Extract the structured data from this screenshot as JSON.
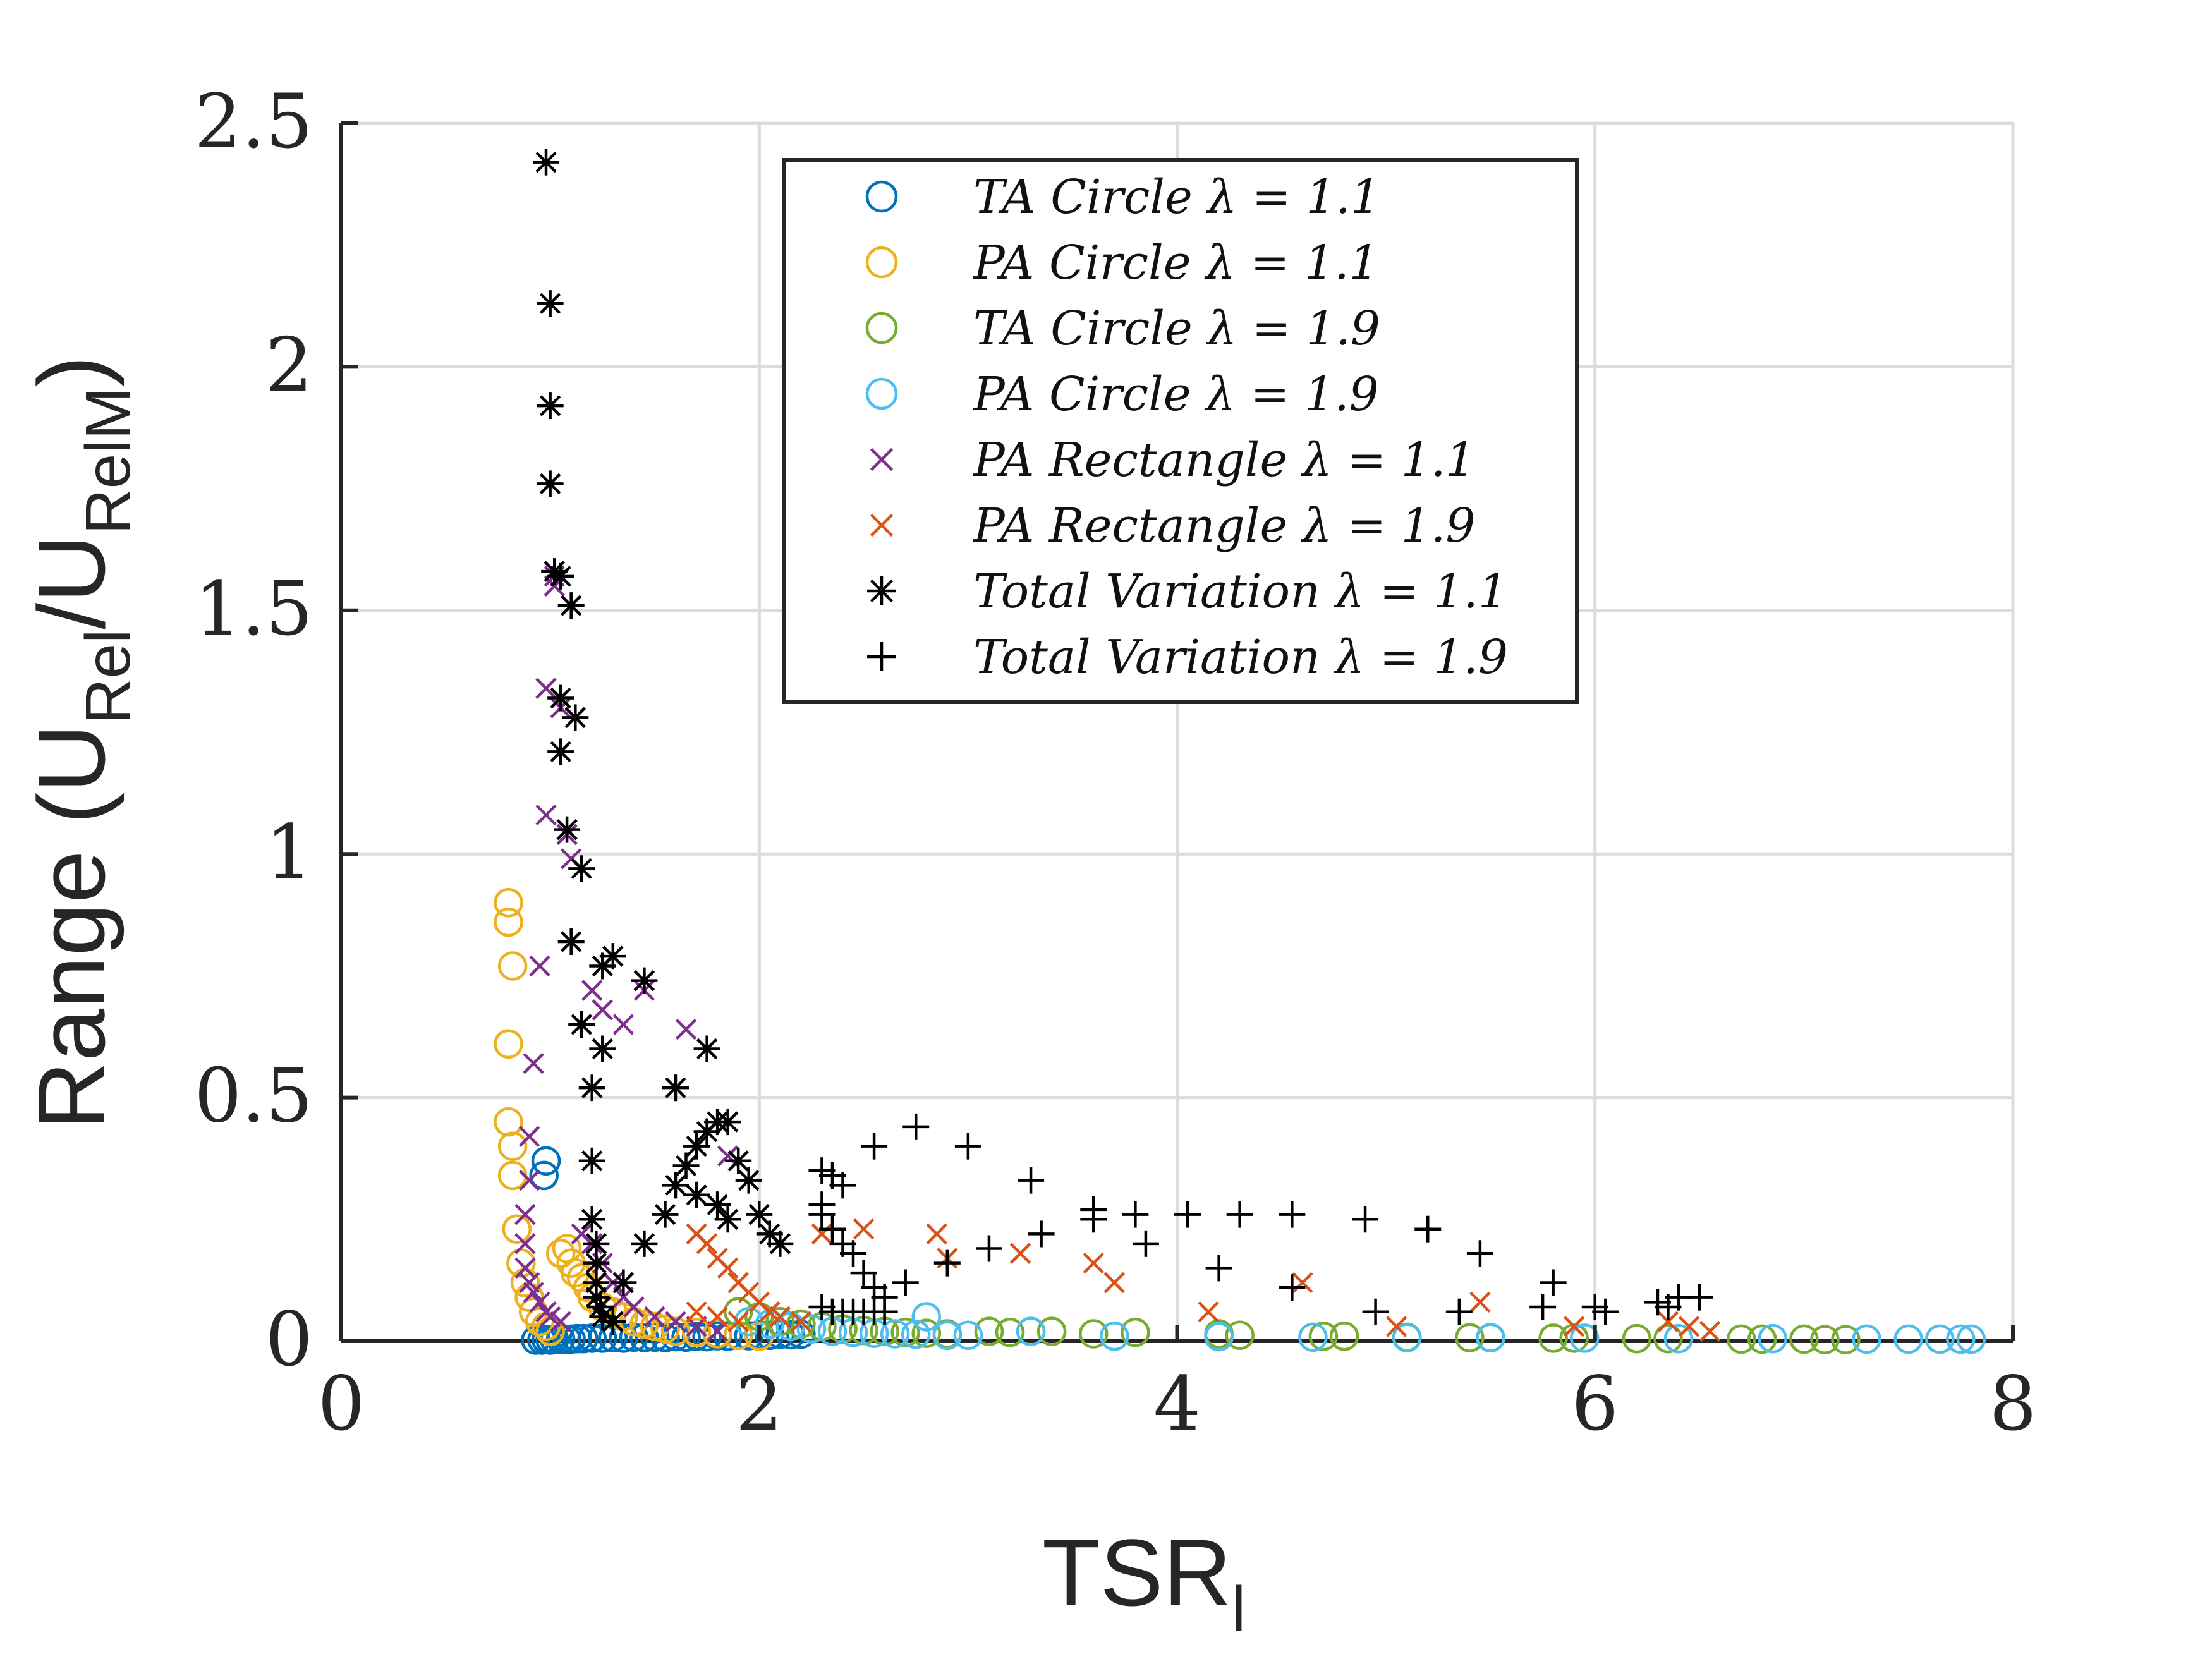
{
  "chart_data": {
    "type": "scatter",
    "title": "",
    "xlabel": "TSR",
    "xlabel_sub": "l",
    "ylabel_prefix": "Range (U",
    "ylabel_sub1": "Rel",
    "ylabel_mid": "/U",
    "ylabel_sub2": "RelM",
    "ylabel_suffix": ")",
    "xlim": [
      0,
      8
    ],
    "ylim": [
      0,
      2.5
    ],
    "x_ticks": [
      "0",
      "2",
      "4",
      "6",
      "8"
    ],
    "y_ticks": [
      "0",
      "0.5",
      "1",
      "1.5",
      "2",
      "2.5"
    ],
    "x_tick_values": [
      0,
      2,
      4,
      6,
      8
    ],
    "y_tick_values": [
      0,
      0.5,
      1,
      1.5,
      2,
      2.5
    ],
    "grid": true,
    "legend_position": "top-right",
    "series": [
      {
        "name": "TA Circle λ = 1.1",
        "marker": "circle",
        "color": "#0072BD",
        "points": [
          [
            0.93,
            0.002
          ],
          [
            0.96,
            0.002
          ],
          [
            0.98,
            0.003
          ],
          [
            1.0,
            0.002
          ],
          [
            1.02,
            0.003
          ],
          [
            1.05,
            0.004
          ],
          [
            1.08,
            0.003
          ],
          [
            1.1,
            0.004
          ],
          [
            1.13,
            0.005
          ],
          [
            1.16,
            0.005
          ],
          [
            1.2,
            0.006
          ],
          [
            1.25,
            0.006
          ],
          [
            1.3,
            0.007
          ],
          [
            1.35,
            0.006
          ],
          [
            1.4,
            0.008
          ],
          [
            1.45,
            0.007
          ],
          [
            1.5,
            0.008
          ],
          [
            1.55,
            0.007
          ],
          [
            1.6,
            0.009
          ],
          [
            1.65,
            0.008
          ],
          [
            1.7,
            0.01
          ],
          [
            1.75,
            0.009
          ],
          [
            1.8,
            0.011
          ],
          [
            1.85,
            0.01
          ],
          [
            1.9,
            0.012
          ],
          [
            1.95,
            0.011
          ],
          [
            2.0,
            0.013
          ],
          [
            2.05,
            0.012
          ],
          [
            2.1,
            0.014
          ],
          [
            2.15,
            0.013
          ],
          [
            2.2,
            0.014
          ],
          [
            0.97,
            0.34
          ],
          [
            0.98,
            0.37
          ]
        ]
      },
      {
        "name": "PA Circle λ = 1.1",
        "marker": "circle",
        "color": "#EDB120",
        "points": [
          [
            0.8,
            0.9
          ],
          [
            0.8,
            0.86
          ],
          [
            0.82,
            0.77
          ],
          [
            0.8,
            0.61
          ],
          [
            0.8,
            0.45
          ],
          [
            0.82,
            0.4
          ],
          [
            0.82,
            0.34
          ],
          [
            0.84,
            0.23
          ],
          [
            0.86,
            0.16
          ],
          [
            0.88,
            0.12
          ],
          [
            0.9,
            0.09
          ],
          [
            0.92,
            0.06
          ],
          [
            0.95,
            0.04
          ],
          [
            0.98,
            0.03
          ],
          [
            1.0,
            0.02
          ],
          [
            1.05,
            0.18
          ],
          [
            1.08,
            0.19
          ],
          [
            1.1,
            0.16
          ],
          [
            1.12,
            0.14
          ],
          [
            1.15,
            0.13
          ],
          [
            1.18,
            0.11
          ],
          [
            1.2,
            0.09
          ],
          [
            1.25,
            0.07
          ],
          [
            1.3,
            0.06
          ],
          [
            1.35,
            0.05
          ],
          [
            1.4,
            0.04
          ],
          [
            1.45,
            0.035
          ],
          [
            1.5,
            0.03
          ],
          [
            1.55,
            0.025
          ],
          [
            1.6,
            0.02
          ],
          [
            1.7,
            0.018
          ],
          [
            1.8,
            0.015
          ],
          [
            1.9,
            0.012
          ],
          [
            2.0,
            0.01
          ]
        ]
      },
      {
        "name": "TA Circle λ = 1.9",
        "marker": "circle",
        "color": "#77AC30",
        "points": [
          [
            1.9,
            0.06
          ],
          [
            2.0,
            0.05
          ],
          [
            2.1,
            0.04
          ],
          [
            2.2,
            0.035
          ],
          [
            2.3,
            0.03
          ],
          [
            2.4,
            0.025
          ],
          [
            2.5,
            0.022
          ],
          [
            2.6,
            0.02
          ],
          [
            2.7,
            0.018
          ],
          [
            2.8,
            0.016
          ],
          [
            2.9,
            0.015
          ],
          [
            3.1,
            0.02
          ],
          [
            3.2,
            0.018
          ],
          [
            3.4,
            0.02
          ],
          [
            3.6,
            0.015
          ],
          [
            3.8,
            0.018
          ],
          [
            4.2,
            0.015
          ],
          [
            4.3,
            0.012
          ],
          [
            4.7,
            0.01
          ],
          [
            4.8,
            0.01
          ],
          [
            5.1,
            0.008
          ],
          [
            5.4,
            0.007
          ],
          [
            5.5,
            0.007
          ],
          [
            5.8,
            0.006
          ],
          [
            5.9,
            0.006
          ],
          [
            6.2,
            0.005
          ],
          [
            6.35,
            0.005
          ],
          [
            6.7,
            0.004
          ],
          [
            6.8,
            0.004
          ],
          [
            7.0,
            0.004
          ],
          [
            7.1,
            0.003
          ],
          [
            7.2,
            0.003
          ]
        ]
      },
      {
        "name": "PA Circle λ = 1.9",
        "marker": "circle",
        "color": "#4DBEEE",
        "points": [
          [
            1.95,
            0.04
          ],
          [
            2.05,
            0.035
          ],
          [
            2.15,
            0.03
          ],
          [
            2.25,
            0.025
          ],
          [
            2.35,
            0.02
          ],
          [
            2.45,
            0.018
          ],
          [
            2.55,
            0.016
          ],
          [
            2.65,
            0.015
          ],
          [
            2.75,
            0.014
          ],
          [
            2.8,
            0.05
          ],
          [
            2.9,
            0.012
          ],
          [
            3.0,
            0.012
          ],
          [
            3.3,
            0.02
          ],
          [
            3.7,
            0.01
          ],
          [
            4.2,
            0.009
          ],
          [
            4.65,
            0.008
          ],
          [
            5.1,
            0.007
          ],
          [
            5.5,
            0.007
          ],
          [
            5.95,
            0.006
          ],
          [
            6.4,
            0.005
          ],
          [
            6.85,
            0.005
          ],
          [
            7.3,
            0.004
          ],
          [
            7.5,
            0.004
          ],
          [
            7.65,
            0.004
          ],
          [
            7.75,
            0.004
          ],
          [
            7.8,
            0.004
          ]
        ]
      },
      {
        "name": "PA Rectangle λ = 1.1",
        "marker": "x",
        "color": "#7E2F8E",
        "points": [
          [
            0.98,
            1.34
          ],
          [
            0.98,
            1.08
          ],
          [
            1.02,
            1.57
          ],
          [
            1.02,
            1.55
          ],
          [
            1.05,
            1.3
          ],
          [
            1.08,
            1.04
          ],
          [
            1.1,
            0.99
          ],
          [
            1.2,
            0.72
          ],
          [
            1.25,
            0.68
          ],
          [
            1.35,
            0.65
          ],
          [
            1.45,
            0.72
          ],
          [
            1.65,
            0.64
          ],
          [
            1.85,
            0.38
          ],
          [
            0.95,
            0.77
          ],
          [
            0.92,
            0.57
          ],
          [
            0.9,
            0.42
          ],
          [
            0.9,
            0.33
          ],
          [
            0.88,
            0.26
          ],
          [
            0.88,
            0.2
          ],
          [
            0.88,
            0.15
          ],
          [
            0.9,
            0.12
          ],
          [
            0.92,
            0.1
          ],
          [
            0.95,
            0.08
          ],
          [
            0.98,
            0.06
          ],
          [
            1.0,
            0.05
          ],
          [
            1.05,
            0.04
          ],
          [
            1.15,
            0.22
          ],
          [
            1.2,
            0.2
          ],
          [
            1.25,
            0.16
          ],
          [
            1.3,
            0.12
          ],
          [
            1.35,
            0.09
          ],
          [
            1.4,
            0.07
          ],
          [
            1.5,
            0.05
          ],
          [
            1.6,
            0.04
          ],
          [
            1.7,
            0.03
          ],
          [
            1.8,
            0.02
          ]
        ]
      },
      {
        "name": "PA Rectangle λ = 1.9",
        "marker": "x",
        "color": "#D95319",
        "points": [
          [
            1.7,
            0.22
          ],
          [
            1.75,
            0.2
          ],
          [
            1.8,
            0.17
          ],
          [
            1.85,
            0.15
          ],
          [
            1.9,
            0.12
          ],
          [
            1.95,
            0.1
          ],
          [
            2.0,
            0.08
          ],
          [
            2.05,
            0.06
          ],
          [
            2.1,
            0.05
          ],
          [
            2.2,
            0.04
          ],
          [
            2.3,
            0.22
          ],
          [
            2.5,
            0.23
          ],
          [
            2.85,
            0.22
          ],
          [
            2.9,
            0.17
          ],
          [
            3.25,
            0.18
          ],
          [
            3.6,
            0.16
          ],
          [
            3.7,
            0.12
          ],
          [
            4.15,
            0.06
          ],
          [
            4.6,
            0.12
          ],
          [
            5.05,
            0.03
          ],
          [
            5.45,
            0.08
          ],
          [
            5.9,
            0.03
          ],
          [
            6.35,
            0.04
          ],
          [
            6.45,
            0.03
          ],
          [
            6.55,
            0.02
          ],
          [
            1.7,
            0.06
          ],
          [
            1.8,
            0.05
          ],
          [
            1.9,
            0.04
          ]
        ]
      },
      {
        "name": "Total Variation λ = 1.1",
        "marker": "asterisk",
        "color": "#000000",
        "points": [
          [
            0.98,
            2.42
          ],
          [
            1.0,
            2.13
          ],
          [
            1.0,
            1.92
          ],
          [
            1.0,
            1.76
          ],
          [
            1.02,
            1.58
          ],
          [
            1.05,
            1.57
          ],
          [
            1.1,
            1.51
          ],
          [
            1.05,
            1.32
          ],
          [
            1.12,
            1.28
          ],
          [
            1.05,
            1.21
          ],
          [
            1.08,
            1.05
          ],
          [
            1.15,
            0.97
          ],
          [
            1.1,
            0.82
          ],
          [
            1.15,
            0.65
          ],
          [
            1.25,
            0.77
          ],
          [
            1.3,
            0.79
          ],
          [
            1.45,
            0.74
          ],
          [
            1.25,
            0.6
          ],
          [
            1.2,
            0.52
          ],
          [
            1.2,
            0.37
          ],
          [
            1.2,
            0.25
          ],
          [
            1.22,
            0.2
          ],
          [
            1.22,
            0.16
          ],
          [
            1.22,
            0.12
          ],
          [
            1.22,
            0.09
          ],
          [
            1.24,
            0.07
          ],
          [
            1.25,
            0.05
          ],
          [
            1.3,
            0.04
          ],
          [
            1.35,
            0.12
          ],
          [
            1.45,
            0.2
          ],
          [
            1.55,
            0.26
          ],
          [
            1.6,
            0.32
          ],
          [
            1.65,
            0.36
          ],
          [
            1.7,
            0.4
          ],
          [
            1.75,
            0.43
          ],
          [
            1.8,
            0.45
          ],
          [
            1.85,
            0.45
          ],
          [
            1.9,
            0.37
          ],
          [
            1.95,
            0.33
          ],
          [
            2.0,
            0.26
          ],
          [
            2.05,
            0.22
          ],
          [
            2.1,
            0.2
          ],
          [
            1.6,
            0.52
          ],
          [
            1.75,
            0.6
          ],
          [
            1.8,
            0.28
          ],
          [
            1.85,
            0.25
          ],
          [
            1.7,
            0.3
          ]
        ]
      },
      {
        "name": "Total Variation λ = 1.9",
        "marker": "plus",
        "color": "#000000",
        "points": [
          [
            2.3,
            0.35
          ],
          [
            2.35,
            0.34
          ],
          [
            2.4,
            0.32
          ],
          [
            2.3,
            0.28
          ],
          [
            2.3,
            0.26
          ],
          [
            2.35,
            0.23
          ],
          [
            2.4,
            0.2
          ],
          [
            2.45,
            0.18
          ],
          [
            2.5,
            0.14
          ],
          [
            2.55,
            0.11
          ],
          [
            2.6,
            0.09
          ],
          [
            2.3,
            0.07
          ],
          [
            2.35,
            0.06
          ],
          [
            2.4,
            0.06
          ],
          [
            2.45,
            0.06
          ],
          [
            2.5,
            0.06
          ],
          [
            2.55,
            0.06
          ],
          [
            2.6,
            0.06
          ],
          [
            2.55,
            0.4
          ],
          [
            2.75,
            0.44
          ],
          [
            3.0,
            0.4
          ],
          [
            3.3,
            0.33
          ],
          [
            3.6,
            0.27
          ],
          [
            3.6,
            0.25
          ],
          [
            3.8,
            0.26
          ],
          [
            4.05,
            0.26
          ],
          [
            4.3,
            0.26
          ],
          [
            4.55,
            0.26
          ],
          [
            4.9,
            0.25
          ],
          [
            5.2,
            0.23
          ],
          [
            5.45,
            0.18
          ],
          [
            5.8,
            0.12
          ],
          [
            2.7,
            0.12
          ],
          [
            2.9,
            0.16
          ],
          [
            3.1,
            0.19
          ],
          [
            3.35,
            0.22
          ],
          [
            3.85,
            0.2
          ],
          [
            4.2,
            0.15
          ],
          [
            4.55,
            0.11
          ],
          [
            4.95,
            0.06
          ],
          [
            5.35,
            0.06
          ],
          [
            5.75,
            0.07
          ],
          [
            6.0,
            0.07
          ],
          [
            6.3,
            0.08
          ],
          [
            6.4,
            0.09
          ],
          [
            6.5,
            0.09
          ],
          [
            6.05,
            0.06
          ],
          [
            6.35,
            0.07
          ]
        ]
      }
    ]
  }
}
